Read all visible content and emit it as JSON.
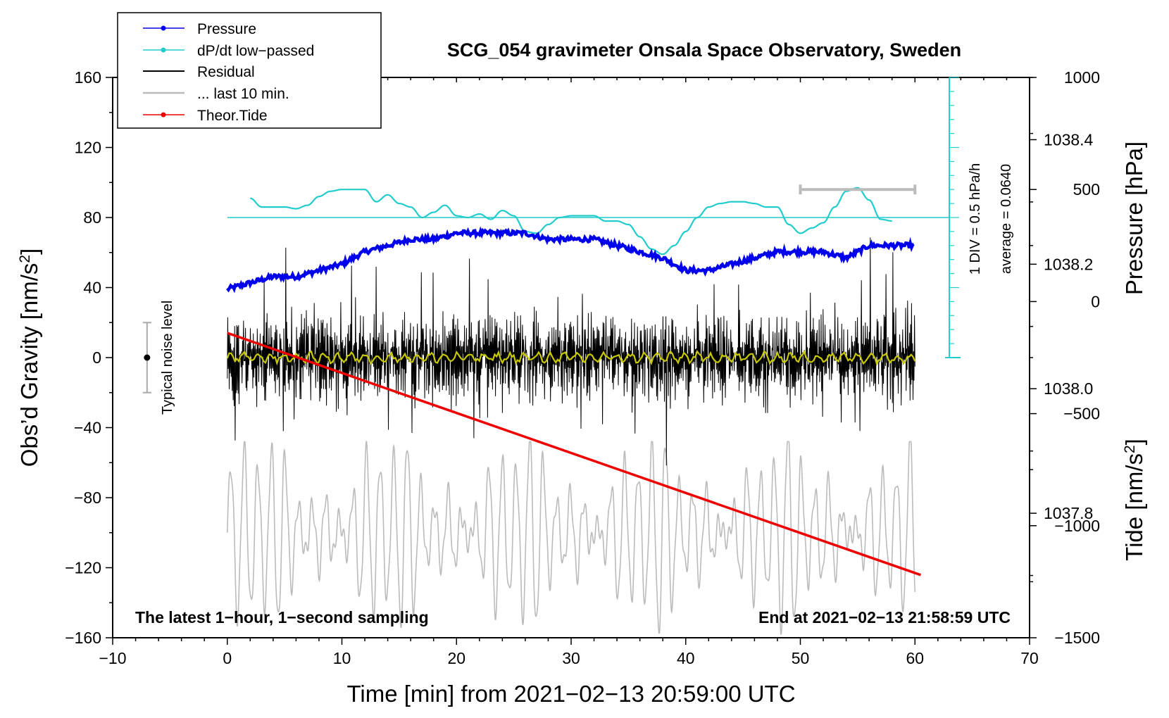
{
  "chart_data": {
    "type": "line",
    "title": "SCG_054 gravimeter Onsala Space Observatory, Sweden",
    "xlabel": "Time [min] from 2021−02−13 20:59:00 UTC",
    "xlim": [
      -10,
      70
    ],
    "x_ticks": [
      "−10",
      "0",
      "10",
      "20",
      "30",
      "40",
      "50",
      "60",
      "70"
    ],
    "y_left": {
      "label": "Obs’d Gravity [nm/s",
      "label_sup": "2",
      "label_close": "]",
      "lim": [
        -160,
        160
      ],
      "ticks": [
        "160",
        "120",
        "80",
        "40",
        "0",
        "−40",
        "−80",
        "−120",
        "−160"
      ]
    },
    "y_right_pressure": {
      "label": "Pressure [hPa]",
      "lim": [
        1037.6,
        1038.5
      ],
      "ticks": [
        "1038.4",
        "1038.2",
        "1038.0",
        "1037.8"
      ]
    },
    "y_right_tide": {
      "label": "Tide [nm/s",
      "label_sup": "2",
      "label_close": "]",
      "lim": [
        -1500,
        1000
      ],
      "ticks": [
        "1000",
        "500",
        "0",
        "−500",
        "−1000",
        "−1500"
      ]
    },
    "legend": {
      "placement": "top-left",
      "entries": [
        {
          "name": "Pressure",
          "color": "#0000ee",
          "marker": "dot"
        },
        {
          "name": "dP/dt low−passed",
          "color": "#22cccc",
          "marker": "dot"
        },
        {
          "name": "Residual",
          "color": "#000000",
          "marker": "none"
        },
        {
          "name": "... last 10 min.",
          "color": "#bbbbbb",
          "marker": "none"
        },
        {
          "name": "Theor.Tide",
          "color": "#ee0000",
          "marker": "dot"
        }
      ]
    },
    "annotations": {
      "div_scale": "1 DIV = 0.5 hPa/h",
      "average": "average = 0.0640",
      "noise": "Typical noise level",
      "bottom_left": "The latest 1−hour, 1−second sampling",
      "bottom_right": "End at 2021−02−13 21:58:59 UTC"
    },
    "series": [
      {
        "name": "Pressure",
        "axis": "pressure",
        "x": [
          0,
          2,
          4,
          6,
          8,
          10,
          12,
          14,
          16,
          18,
          20,
          22,
          24,
          26,
          28,
          30,
          32,
          34,
          36,
          38,
          40,
          42,
          44,
          46,
          48,
          50,
          52,
          54,
          56,
          58,
          60
        ],
        "values": [
          1038.16,
          1038.17,
          1038.18,
          1038.18,
          1038.19,
          1038.2,
          1038.22,
          1038.23,
          1038.24,
          1038.24,
          1038.25,
          1038.25,
          1038.25,
          1038.25,
          1038.24,
          1038.24,
          1038.24,
          1038.23,
          1038.22,
          1038.21,
          1038.19,
          1038.19,
          1038.2,
          1038.21,
          1038.22,
          1038.22,
          1038.22,
          1038.21,
          1038.23,
          1038.23,
          1038.23
        ]
      },
      {
        "name": "dP/dt low−passed",
        "axis": "gravity",
        "x": [
          2,
          3,
          4,
          5,
          6,
          7,
          8,
          9,
          10,
          11,
          12,
          13,
          14,
          15,
          16,
          17,
          18,
          19,
          20,
          21,
          22,
          23,
          24,
          25,
          26,
          27,
          28,
          29,
          30,
          31,
          32,
          33,
          34,
          35,
          36,
          37,
          38,
          39,
          40,
          41,
          42,
          43,
          44,
          45,
          46,
          47,
          48,
          49,
          50,
          51,
          52,
          53,
          54,
          55,
          56,
          57,
          58
        ],
        "values": [
          91,
          86,
          86,
          86,
          85,
          87,
          92,
          95,
          96,
          96,
          96,
          89,
          93,
          88,
          86,
          80,
          83,
          87,
          81,
          80,
          82,
          79,
          84,
          81,
          72,
          71,
          76,
          80,
          81,
          81,
          81,
          78,
          78,
          76,
          69,
          62,
          59,
          64,
          72,
          80,
          86,
          88,
          89,
          89,
          88,
          86,
          86,
          76,
          71,
          74,
          77,
          86,
          95,
          97,
          90,
          79,
          78
        ]
      },
      {
        "name": "Residual",
        "axis": "gravity",
        "style": "noise",
        "x_range": [
          0,
          60
        ],
        "amplitude_typical": 20,
        "peak_min": -72,
        "peak_max": 73
      },
      {
        "name": "Residual smoothed",
        "axis": "gravity",
        "color": "#c8c800",
        "x_range": [
          0,
          60
        ],
        "amplitude_typical": 3
      },
      {
        "name": "... last 10 min.",
        "axis": "gravity",
        "x_range": [
          0,
          60
        ],
        "center": -100,
        "amplitude_typical": 40,
        "peak_min": -165,
        "peak_max": -48
      },
      {
        "name": "Theor.Tide",
        "axis": "tide",
        "x": [
          0,
          60.5
        ],
        "values": [
          -140,
          -1220
        ]
      },
      {
        "name": "Zero reference",
        "axis": "gravity",
        "x": [
          0,
          63
        ],
        "values": [
          80,
          80
        ]
      }
    ],
    "noise_bar": {
      "x": -7,
      "center": 0,
      "low": -20,
      "high": 20
    },
    "last10_range_bar": {
      "x_start": 50,
      "x_end": 60,
      "tide_value": 500
    },
    "div_axis": {
      "x": 63,
      "top": 160,
      "bottom": 0,
      "major_step": 40,
      "minor_step": 8
    }
  }
}
